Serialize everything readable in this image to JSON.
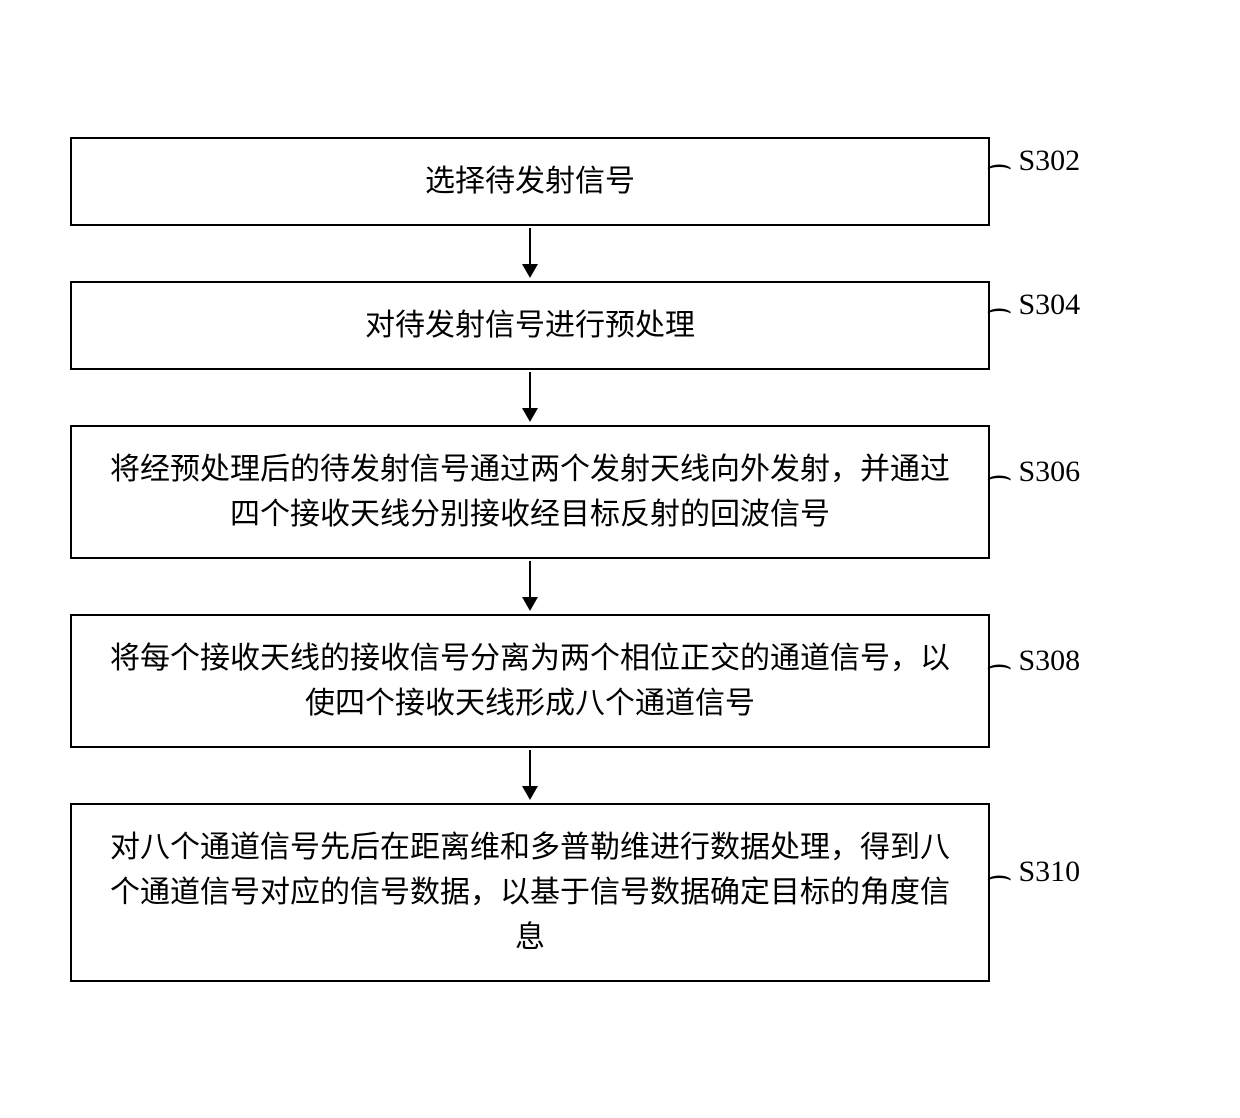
{
  "flowchart": {
    "type": "flowchart",
    "background_color": "#ffffff",
    "box_border_color": "#000000",
    "box_border_width": 2,
    "text_color": "#000000",
    "font_family": "SimSun",
    "font_size": 30,
    "arrow_color": "#000000",
    "steps": [
      {
        "label": "S302",
        "text": "选择待发射信号"
      },
      {
        "label": "S304",
        "text": "对待发射信号进行预处理"
      },
      {
        "label": "S306",
        "text": "将经预处理后的待发射信号通过两个发射天线向外发射，并通过四个接收天线分别接收经目标反射的回波信号"
      },
      {
        "label": "S308",
        "text": "将每个接收天线的接收信号分离为两个相位正交的通道信号，以使四个接收天线形成八个通道信号"
      },
      {
        "label": "S310",
        "text": "对八个通道信号先后在距离维和多普勒维进行数据处理，得到八个通道信号对应的信号数据，以基于信号数据确定目标的角度信息"
      }
    ]
  }
}
